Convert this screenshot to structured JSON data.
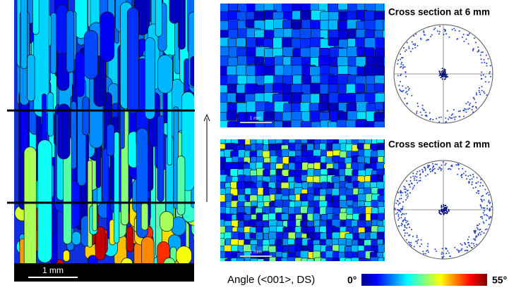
{
  "longitudinal": {
    "scale_bar": "1 mm"
  },
  "cross_sections": [
    {
      "title": "Cross section at 6 mm",
      "scale_bar": "1 mm"
    },
    {
      "title": "Cross section at 2 mm",
      "scale_bar": "1 mm"
    }
  ],
  "colorbar": {
    "label": "Angle (<001>, DS)",
    "min_label": "0°",
    "max_label": "55°"
  }
}
